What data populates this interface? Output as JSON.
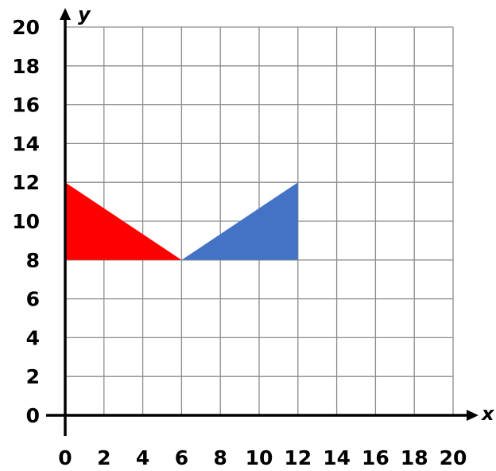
{
  "graph": {
    "x_axis": {
      "label": "x",
      "min": 0,
      "max": 20,
      "step": 2
    },
    "y_axis": {
      "label": "y",
      "min": 0,
      "max": 20,
      "step": 2
    },
    "x_ticks": [
      "0",
      "2",
      "4",
      "6",
      "8",
      "10",
      "12",
      "14",
      "16",
      "18",
      "20"
    ],
    "y_ticks": [
      "0",
      "2",
      "4",
      "6",
      "8",
      "10",
      "12",
      "14",
      "16",
      "18",
      "20"
    ],
    "grid": true,
    "shapes": [
      {
        "name": "red-triangle",
        "color": "#ff0000",
        "vertices": [
          [
            0,
            12
          ],
          [
            0,
            8
          ],
          [
            6,
            8
          ]
        ]
      },
      {
        "name": "blue-triangle",
        "color": "#4472c4",
        "vertices": [
          [
            6,
            8
          ],
          [
            12,
            8
          ],
          [
            12,
            12
          ]
        ]
      }
    ]
  }
}
